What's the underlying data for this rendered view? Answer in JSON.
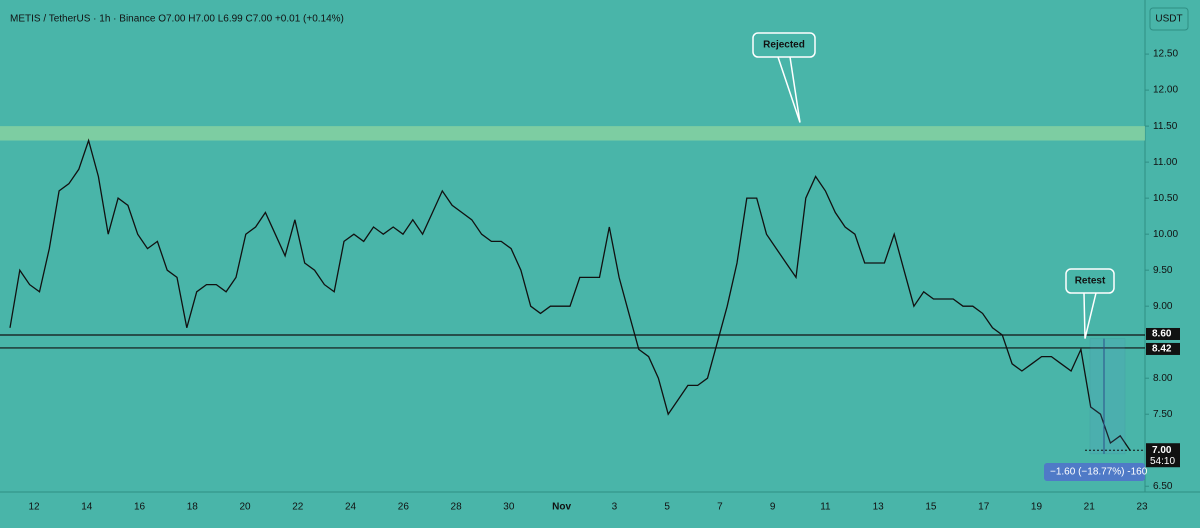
{
  "chart_data": {
    "type": "line",
    "title": "METIS / TetherUS · 1h · Binance  O7.00 H7.00 L6.99 C7.00 +0.01 (+0.14%)",
    "currency_button": "USDT",
    "color": "#111111",
    "values": [
      8.7,
      9.5,
      9.3,
      9.2,
      9.8,
      10.6,
      10.7,
      10.9,
      11.3,
      10.8,
      10.0,
      10.5,
      10.4,
      10.0,
      9.8,
      9.9,
      9.5,
      9.4,
      8.7,
      9.2,
      9.3,
      9.3,
      9.2,
      9.4,
      10.0,
      10.1,
      10.3,
      10.0,
      9.7,
      10.2,
      9.6,
      9.5,
      9.3,
      9.2,
      9.9,
      10.0,
      9.9,
      10.1,
      10.0,
      10.1,
      10.0,
      10.2,
      10.0,
      10.3,
      10.6,
      10.4,
      10.3,
      10.2,
      10.0,
      9.9,
      9.9,
      9.8,
      9.5,
      9.0,
      8.9,
      9.0,
      9.0,
      9.0,
      9.4,
      9.4,
      9.4,
      10.1,
      9.4,
      8.9,
      8.4,
      8.3,
      8.0,
      7.5,
      7.7,
      7.9,
      7.9,
      8.0,
      8.5,
      9.0,
      9.6,
      10.5,
      10.5,
      10.0,
      9.8,
      9.6,
      9.4,
      10.5,
      10.8,
      10.6,
      10.3,
      10.1,
      10.0,
      9.6,
      9.6,
      9.6,
      10.0,
      9.5,
      9.0,
      9.2,
      9.1,
      9.1,
      9.1,
      9.0,
      9.0,
      8.9,
      8.7,
      8.6,
      8.2,
      8.1,
      8.2,
      8.3,
      8.3,
      8.2,
      8.1,
      8.4,
      7.6,
      7.5,
      7.1,
      7.2,
      7.0
    ],
    "ylim": [
      6.42,
      13.14
    ],
    "yticks": [
      {
        "value": 6.5,
        "label": "6.50"
      },
      {
        "value": 7.5,
        "label": "7.50"
      },
      {
        "value": 8.0,
        "label": "8.00"
      },
      {
        "value": 9.0,
        "label": "9.00"
      },
      {
        "value": 9.5,
        "label": "9.50"
      },
      {
        "value": 10.0,
        "label": "10.00"
      },
      {
        "value": 10.5,
        "label": "10.50"
      },
      {
        "value": 11.0,
        "label": "11.00"
      },
      {
        "value": 11.5,
        "label": "11.50"
      },
      {
        "value": 12.0,
        "label": "12.00"
      },
      {
        "value": 12.5,
        "label": "12.50"
      }
    ],
    "xticks": [
      "12",
      "14",
      "16",
      "18",
      "20",
      "22",
      "24",
      "26",
      "28",
      "30",
      "Nov",
      "3",
      "5",
      "7",
      "9",
      "11",
      "13",
      "15",
      "17",
      "19",
      "21",
      "23"
    ],
    "zone": [
      11.3,
      11.5
    ],
    "levels": [
      {
        "value": 8.6,
        "label": "8.60"
      },
      {
        "value": 8.42,
        "label": "8.42"
      }
    ],
    "last_price": {
      "value": 7.0,
      "label": "7.00",
      "countdown": "54:10"
    },
    "annotations": [
      {
        "text": "Rejected",
        "target": 11.55
      },
      {
        "text": "Retest",
        "target": 8.55
      }
    ],
    "measure": {
      "from": 8.55,
      "to": 6.95,
      "label": "−1.60 (−18.77%) -160"
    }
  }
}
